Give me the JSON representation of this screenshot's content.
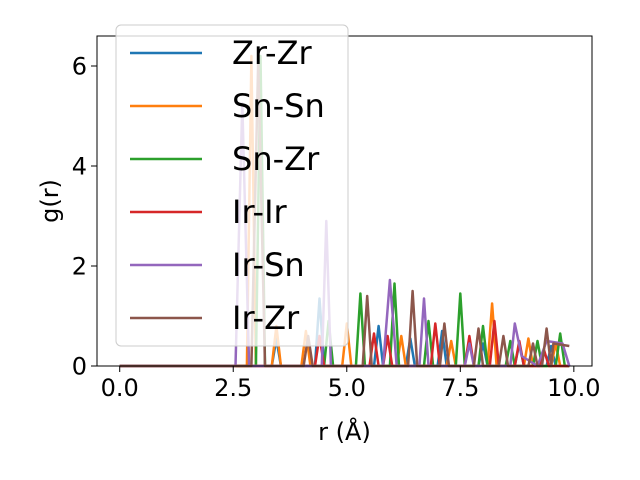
{
  "chart_data": {
    "type": "line",
    "title": "",
    "xlabel": "r (Å)",
    "ylabel": "g(r)",
    "xlim": [
      -0.5,
      10.4
    ],
    "ylim": [
      0,
      6.6
    ],
    "x_ticks": [
      0.0,
      2.5,
      5.0,
      7.5,
      10.0
    ],
    "x_tick_labels": [
      "0.0",
      "2.5",
      "5.0",
      "7.5",
      "10.0"
    ],
    "y_ticks": [
      0,
      2,
      4,
      6
    ],
    "y_tick_labels": [
      "0",
      "2",
      "4",
      "6"
    ],
    "grid": false,
    "legend_position": "upper-left",
    "series": [
      {
        "name": "Zr-Zr",
        "color": "#1f77b4",
        "points": [
          [
            0,
            0
          ],
          [
            3.35,
            0
          ],
          [
            3.45,
            0.55
          ],
          [
            3.55,
            0
          ],
          [
            4.3,
            0
          ],
          [
            4.4,
            1.35
          ],
          [
            4.5,
            0
          ],
          [
            5.6,
            0
          ],
          [
            5.7,
            0.8
          ],
          [
            5.8,
            0
          ],
          [
            6.3,
            0
          ],
          [
            6.4,
            0.55
          ],
          [
            6.5,
            0
          ],
          [
            7.0,
            0
          ],
          [
            7.1,
            0.7
          ],
          [
            7.2,
            0
          ],
          [
            7.9,
            0
          ],
          [
            8.0,
            0.45
          ],
          [
            8.1,
            0
          ],
          [
            8.7,
            0
          ],
          [
            8.8,
            0.45
          ],
          [
            8.9,
            0
          ],
          [
            9.4,
            0
          ],
          [
            9.5,
            0.4
          ],
          [
            9.6,
            0
          ],
          [
            9.9,
            0
          ]
        ]
      },
      {
        "name": "Sn-Sn",
        "color": "#ff7f0e",
        "points": [
          [
            0,
            0
          ],
          [
            2.8,
            0
          ],
          [
            2.9,
            6.2
          ],
          [
            3.0,
            0
          ],
          [
            3.35,
            0
          ],
          [
            3.45,
            0.8
          ],
          [
            3.55,
            0
          ],
          [
            4.0,
            0
          ],
          [
            4.1,
            0.7
          ],
          [
            4.2,
            0
          ],
          [
            4.9,
            0
          ],
          [
            5.0,
            0.85
          ],
          [
            5.1,
            0
          ],
          [
            6.1,
            0
          ],
          [
            6.2,
            0.6
          ],
          [
            6.3,
            0
          ],
          [
            7.2,
            0
          ],
          [
            7.3,
            0.5
          ],
          [
            7.4,
            0
          ],
          [
            8.1,
            0
          ],
          [
            8.2,
            1.25
          ],
          [
            8.3,
            0
          ],
          [
            8.9,
            0
          ],
          [
            9.0,
            0.55
          ],
          [
            9.1,
            0
          ],
          [
            9.5,
            0
          ],
          [
            9.6,
            0.45
          ],
          [
            9.7,
            0
          ],
          [
            9.9,
            0
          ]
        ]
      },
      {
        "name": "Sn-Zr",
        "color": "#2ca02c",
        "points": [
          [
            0,
            0
          ],
          [
            3.0,
            0
          ],
          [
            3.1,
            6.2
          ],
          [
            3.2,
            0
          ],
          [
            4.5,
            0
          ],
          [
            4.6,
            0.9
          ],
          [
            4.7,
            0
          ],
          [
            5.2,
            0
          ],
          [
            5.3,
            1.45
          ],
          [
            5.4,
            0
          ],
          [
            5.95,
            0
          ],
          [
            6.05,
            1.65
          ],
          [
            6.15,
            0
          ],
          [
            6.7,
            0
          ],
          [
            6.8,
            0.9
          ],
          [
            6.9,
            0
          ],
          [
            7.4,
            0
          ],
          [
            7.5,
            1.45
          ],
          [
            7.6,
            0
          ],
          [
            7.9,
            0
          ],
          [
            8.0,
            0.8
          ],
          [
            8.1,
            0
          ],
          [
            8.5,
            0
          ],
          [
            8.6,
            0.5
          ],
          [
            8.7,
            0
          ],
          [
            9.1,
            0
          ],
          [
            9.2,
            0.5
          ],
          [
            9.3,
            0
          ],
          [
            9.6,
            0
          ],
          [
            9.7,
            0.65
          ],
          [
            9.8,
            0
          ],
          [
            9.9,
            0
          ]
        ]
      },
      {
        "name": "Ir-Ir",
        "color": "#d62728",
        "points": [
          [
            0,
            0
          ],
          [
            4.3,
            0
          ],
          [
            4.4,
            0.6
          ],
          [
            4.5,
            0
          ],
          [
            5.5,
            0
          ],
          [
            5.6,
            0.65
          ],
          [
            5.7,
            0
          ],
          [
            5.8,
            0
          ],
          [
            5.9,
            0.6
          ],
          [
            6.0,
            0
          ],
          [
            6.85,
            0
          ],
          [
            6.95,
            0.85
          ],
          [
            7.05,
            0
          ],
          [
            7.6,
            0
          ],
          [
            7.7,
            0.6
          ],
          [
            7.8,
            0
          ],
          [
            8.15,
            0
          ],
          [
            8.25,
            0.9
          ],
          [
            8.35,
            0
          ],
          [
            8.7,
            0
          ],
          [
            8.8,
            0.5
          ],
          [
            8.9,
            0
          ],
          [
            9.25,
            0
          ],
          [
            9.35,
            0.3
          ],
          [
            9.45,
            0
          ],
          [
            9.9,
            0
          ]
        ]
      },
      {
        "name": "Ir-Sn",
        "color": "#9467bd",
        "points": [
          [
            0,
            0
          ],
          [
            2.55,
            0
          ],
          [
            2.7,
            5.25
          ],
          [
            2.85,
            0
          ],
          [
            4.45,
            0
          ],
          [
            4.55,
            2.9
          ],
          [
            4.65,
            0
          ],
          [
            5.8,
            0
          ],
          [
            5.95,
            1.72
          ],
          [
            6.1,
            0
          ],
          [
            6.6,
            0
          ],
          [
            6.7,
            1.35
          ],
          [
            6.8,
            0
          ],
          [
            7.6,
            0
          ],
          [
            7.7,
            0.45
          ],
          [
            7.8,
            0
          ],
          [
            8.6,
            0
          ],
          [
            8.7,
            0.85
          ],
          [
            8.85,
            0.2
          ],
          [
            9.2,
            0
          ],
          [
            9.4,
            0.5
          ],
          [
            9.75,
            0.45
          ],
          [
            9.9,
            0
          ]
        ]
      },
      {
        "name": "Ir-Zr",
        "color": "#8c564b",
        "points": [
          [
            0,
            0
          ],
          [
            2.9,
            0
          ],
          [
            3.05,
            6.1
          ],
          [
            3.2,
            0
          ],
          [
            4.05,
            0
          ],
          [
            4.15,
            0.6
          ],
          [
            4.25,
            0
          ],
          [
            5.35,
            0
          ],
          [
            5.45,
            1.4
          ],
          [
            5.55,
            0
          ],
          [
            6.35,
            0
          ],
          [
            6.45,
            1.5
          ],
          [
            6.55,
            0
          ],
          [
            7.05,
            0
          ],
          [
            7.15,
            0.85
          ],
          [
            7.25,
            0
          ],
          [
            7.8,
            0
          ],
          [
            7.9,
            0.75
          ],
          [
            8.0,
            0
          ],
          [
            8.35,
            0
          ],
          [
            8.45,
            0.6
          ],
          [
            8.55,
            0
          ],
          [
            9.0,
            0
          ],
          [
            9.1,
            0.45
          ],
          [
            9.2,
            0
          ],
          [
            9.3,
            0
          ],
          [
            9.4,
            0.75
          ],
          [
            9.5,
            0
          ],
          [
            9.55,
            0.45
          ],
          [
            9.9,
            0.4
          ]
        ]
      }
    ]
  }
}
